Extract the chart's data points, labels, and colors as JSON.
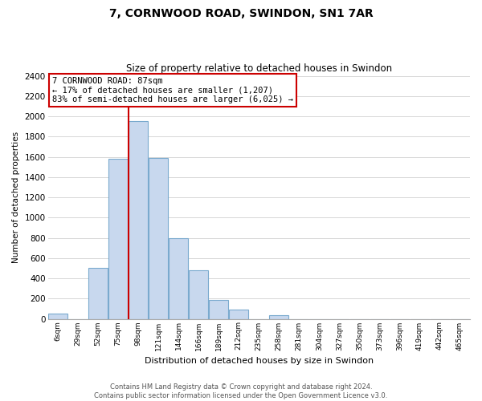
{
  "title": "7, CORNWOOD ROAD, SWINDON, SN1 7AR",
  "subtitle": "Size of property relative to detached houses in Swindon",
  "xlabel": "Distribution of detached houses by size in Swindon",
  "ylabel": "Number of detached properties",
  "footer_line1": "Contains HM Land Registry data © Crown copyright and database right 2024.",
  "footer_line2": "Contains public sector information licensed under the Open Government Licence v3.0.",
  "bar_labels": [
    "6sqm",
    "29sqm",
    "52sqm",
    "75sqm",
    "98sqm",
    "121sqm",
    "144sqm",
    "166sqm",
    "189sqm",
    "212sqm",
    "235sqm",
    "258sqm",
    "281sqm",
    "304sqm",
    "327sqm",
    "350sqm",
    "373sqm",
    "396sqm",
    "419sqm",
    "442sqm",
    "465sqm"
  ],
  "bar_values": [
    55,
    0,
    500,
    1580,
    1950,
    1590,
    800,
    480,
    185,
    90,
    0,
    35,
    0,
    0,
    0,
    0,
    0,
    0,
    0,
    0,
    0
  ],
  "bar_color": "#c8d8ee",
  "bar_edge_color": "#7aaace",
  "ylim": [
    0,
    2400
  ],
  "yticks": [
    0,
    200,
    400,
    600,
    800,
    1000,
    1200,
    1400,
    1600,
    1800,
    2000,
    2200,
    2400
  ],
  "property_line_index": 4,
  "property_line_label": "7 CORNWOOD ROAD: 87sqm",
  "annotation_line1": "← 17% of detached houses are smaller (1,207)",
  "annotation_line2": "83% of semi-detached houses are larger (6,025) →",
  "annotation_box_color": "#ffffff",
  "annotation_box_edge_color": "#cc0000",
  "property_line_color": "#cc0000",
  "background_color": "#ffffff",
  "grid_color": "#d0d0d0"
}
